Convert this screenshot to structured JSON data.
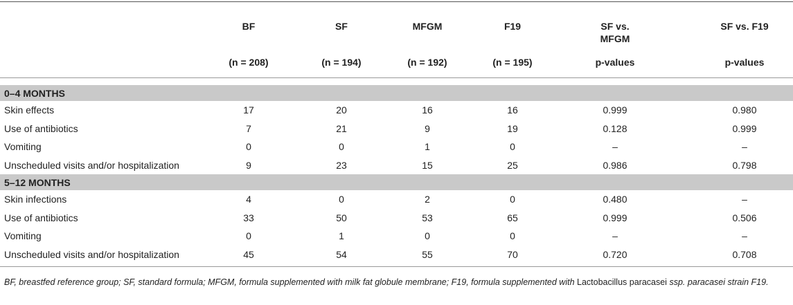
{
  "table": {
    "headers": [
      "BF",
      "SF",
      "MFGM",
      "F19",
      "SF vs. MFGM",
      "SF vs. F19"
    ],
    "subheaders": [
      "(n = 208)",
      "(n = 194)",
      "(n = 192)",
      "(n = 195)",
      "p-values",
      "p-values"
    ],
    "sections": [
      {
        "title": "0–4 MONTHS",
        "rows": [
          [
            "Skin effects",
            "17",
            "20",
            "16",
            "16",
            "0.999",
            "0.980"
          ],
          [
            "Use of antibiotics",
            "7",
            "21",
            "9",
            "19",
            "0.128",
            "0.999"
          ],
          [
            "Vomiting",
            "0",
            "0",
            "1",
            "0",
            "–",
            "–"
          ],
          [
            "Unscheduled visits and/or hospitalization",
            "9",
            "23",
            "15",
            "25",
            "0.986",
            "0.798"
          ]
        ]
      },
      {
        "title": "5–12 MONTHS",
        "rows": [
          [
            "Skin infections",
            "4",
            "0",
            "2",
            "0",
            "0.480",
            "–"
          ],
          [
            "Use of antibiotics",
            "33",
            "50",
            "53",
            "65",
            "0.999",
            "0.506"
          ],
          [
            "Vomiting",
            "0",
            "1",
            "0",
            "0",
            "–",
            "–"
          ],
          [
            "Unscheduled visits and/or hospitalization",
            "45",
            "54",
            "55",
            "70",
            "0.720",
            "0.708"
          ]
        ]
      }
    ]
  },
  "footnote": [
    "BF, breastfed reference group; SF, standard formula; MFGM, formula supplemented with milk fat globule membrane; F19, formula supplemented with ",
    "Lactobacillus paracasei",
    " ssp. paracasei strain F19."
  ]
}
